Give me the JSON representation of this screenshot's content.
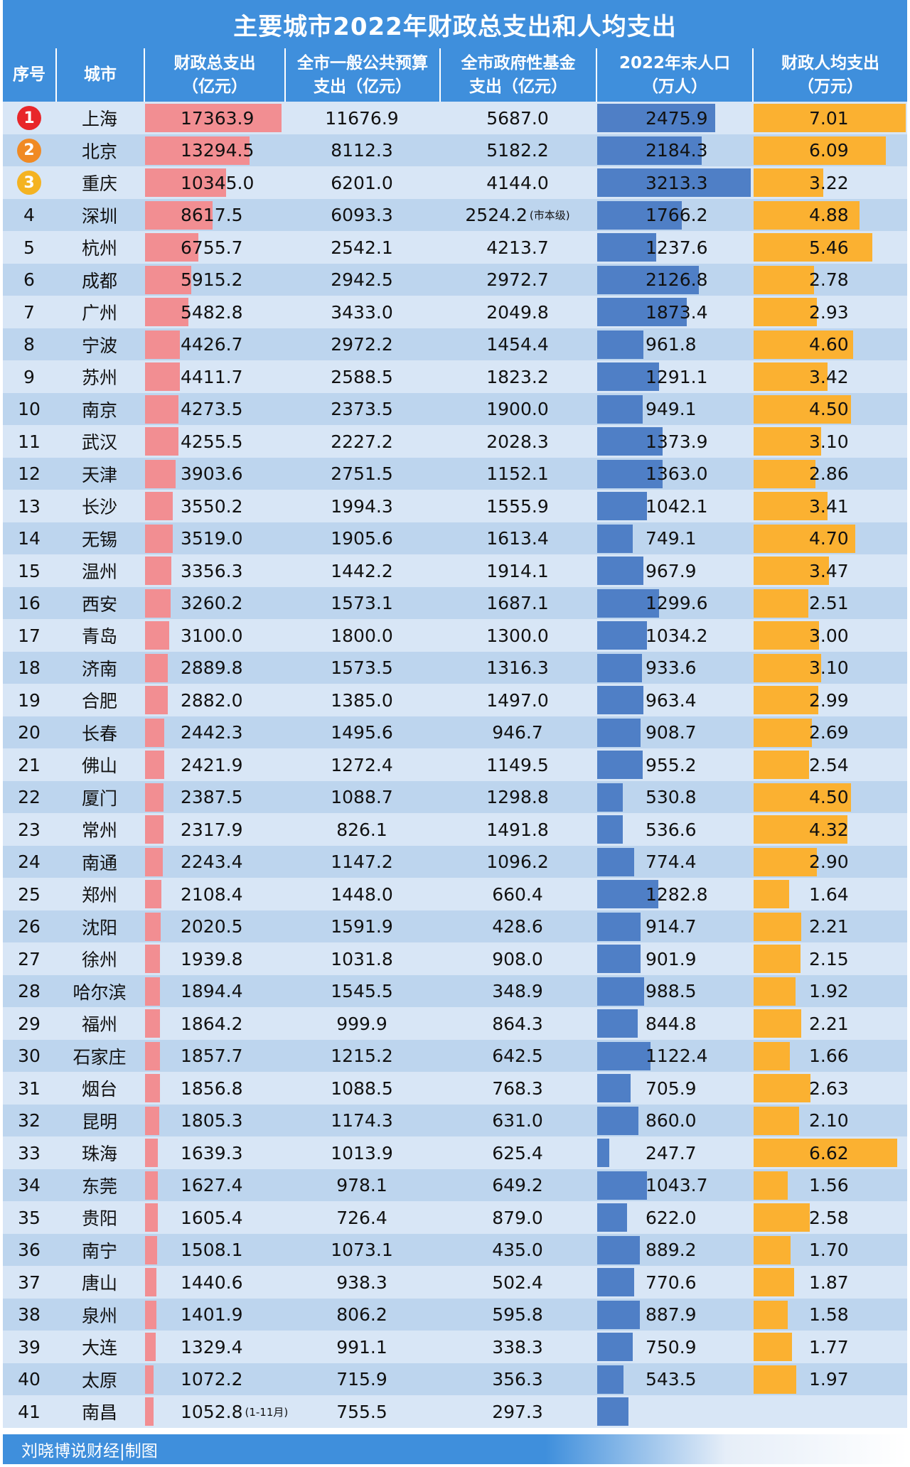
{
  "chart_data": {
    "type": "table",
    "title": "主要城市2022年财政总支出和人均支出",
    "headers": [
      [
        "序号"
      ],
      [
        "城市"
      ],
      [
        "财政总支出",
        "（亿元）"
      ],
      [
        "全市一般公共预算",
        "支出（亿元）"
      ],
      [
        "全市政府性基金",
        "支出（亿元）"
      ],
      [
        "2022年末人口",
        "（万人）"
      ],
      [
        "财政人均支出",
        "（万元）"
      ]
    ],
    "rank_colors": [
      "#e8262a",
      "#f08a24",
      "#f4b322"
    ],
    "bar_colors": {
      "total": "#f28e92",
      "population": "#4f7fc6",
      "per_capita": "#fbb131"
    },
    "rows": [
      {
        "rank": "1",
        "city": "上海",
        "total": "17363.9",
        "budget": "11676.9",
        "fund": "5687.0",
        "pop": "2475.9",
        "pc": "7.01"
      },
      {
        "rank": "2",
        "city": "北京",
        "total": "13294.5",
        "budget": "8112.3",
        "fund": "5182.2",
        "pop": "2184.3",
        "pc": "6.09"
      },
      {
        "rank": "3",
        "city": "重庆",
        "total": "10345.0",
        "budget": "6201.0",
        "fund": "4144.0",
        "pop": "3213.3",
        "pc": "3.22"
      },
      {
        "rank": "4",
        "city": "深圳",
        "total": "8617.5",
        "budget": "6093.3",
        "fund": "2524.2",
        "fund_note": "(市本级)",
        "pop": "1766.2",
        "pc": "4.88"
      },
      {
        "rank": "5",
        "city": "杭州",
        "total": "6755.7",
        "budget": "2542.1",
        "fund": "4213.7",
        "pop": "1237.6",
        "pc": "5.46"
      },
      {
        "rank": "6",
        "city": "成都",
        "total": "5915.2",
        "budget": "2942.5",
        "fund": "2972.7",
        "pop": "2126.8",
        "pc": "2.78"
      },
      {
        "rank": "7",
        "city": "广州",
        "total": "5482.8",
        "budget": "3433.0",
        "fund": "2049.8",
        "pop": "1873.4",
        "pc": "2.93"
      },
      {
        "rank": "8",
        "city": "宁波",
        "total": "4426.7",
        "budget": "2972.2",
        "fund": "1454.4",
        "pop": "961.8",
        "pc": "4.60"
      },
      {
        "rank": "9",
        "city": "苏州",
        "total": "4411.7",
        "budget": "2588.5",
        "fund": "1823.2",
        "pop": "1291.1",
        "pc": "3.42"
      },
      {
        "rank": "10",
        "city": "南京",
        "total": "4273.5",
        "budget": "2373.5",
        "fund": "1900.0",
        "pop": "949.1",
        "pc": "4.50"
      },
      {
        "rank": "11",
        "city": "武汉",
        "total": "4255.5",
        "budget": "2227.2",
        "fund": "2028.3",
        "pop": "1373.9",
        "pc": "3.10"
      },
      {
        "rank": "12",
        "city": "天津",
        "total": "3903.6",
        "budget": "2751.5",
        "fund": "1152.1",
        "pop": "1363.0",
        "pc": "2.86"
      },
      {
        "rank": "13",
        "city": "长沙",
        "total": "3550.2",
        "budget": "1994.3",
        "fund": "1555.9",
        "pop": "1042.1",
        "pc": "3.41"
      },
      {
        "rank": "14",
        "city": "无锡",
        "total": "3519.0",
        "budget": "1905.6",
        "fund": "1613.4",
        "pop": "749.1",
        "pc": "4.70"
      },
      {
        "rank": "15",
        "city": "温州",
        "total": "3356.3",
        "budget": "1442.2",
        "fund": "1914.1",
        "pop": "967.9",
        "pc": "3.47"
      },
      {
        "rank": "16",
        "city": "西安",
        "total": "3260.2",
        "budget": "1573.1",
        "fund": "1687.1",
        "pop": "1299.6",
        "pc": "2.51"
      },
      {
        "rank": "17",
        "city": "青岛",
        "total": "3100.0",
        "budget": "1800.0",
        "fund": "1300.0",
        "pop": "1034.2",
        "pc": "3.00"
      },
      {
        "rank": "18",
        "city": "济南",
        "total": "2889.8",
        "budget": "1573.5",
        "fund": "1316.3",
        "pop": "933.6",
        "pc": "3.10"
      },
      {
        "rank": "19",
        "city": "合肥",
        "total": "2882.0",
        "budget": "1385.0",
        "fund": "1497.0",
        "pop": "963.4",
        "pc": "2.99"
      },
      {
        "rank": "20",
        "city": "长春",
        "total": "2442.3",
        "budget": "1495.6",
        "fund": "946.7",
        "pop": "908.7",
        "pc": "2.69"
      },
      {
        "rank": "21",
        "city": "佛山",
        "total": "2421.9",
        "budget": "1272.4",
        "fund": "1149.5",
        "pop": "955.2",
        "pc": "2.54"
      },
      {
        "rank": "22",
        "city": "厦门",
        "total": "2387.5",
        "budget": "1088.7",
        "fund": "1298.8",
        "pop": "530.8",
        "pc": "4.50"
      },
      {
        "rank": "23",
        "city": "常州",
        "total": "2317.9",
        "budget": "826.1",
        "fund": "1491.8",
        "pop": "536.6",
        "pc": "4.32"
      },
      {
        "rank": "24",
        "city": "南通",
        "total": "2243.4",
        "budget": "1147.2",
        "fund": "1096.2",
        "pop": "774.4",
        "pc": "2.90"
      },
      {
        "rank": "25",
        "city": "郑州",
        "total": "2108.4",
        "budget": "1448.0",
        "fund": "660.4",
        "pop": "1282.8",
        "pc": "1.64"
      },
      {
        "rank": "26",
        "city": "沈阳",
        "total": "2020.5",
        "budget": "1591.9",
        "fund": "428.6",
        "pop": "914.7",
        "pc": "2.21"
      },
      {
        "rank": "27",
        "city": "徐州",
        "total": "1939.8",
        "budget": "1031.8",
        "fund": "908.0",
        "pop": "901.9",
        "pc": "2.15"
      },
      {
        "rank": "28",
        "city": "哈尔滨",
        "total": "1894.4",
        "budget": "1545.5",
        "fund": "348.9",
        "pop": "988.5",
        "pc": "1.92"
      },
      {
        "rank": "29",
        "city": "福州",
        "total": "1864.2",
        "budget": "999.9",
        "fund": "864.3",
        "pop": "844.8",
        "pc": "2.21"
      },
      {
        "rank": "30",
        "city": "石家庄",
        "total": "1857.7",
        "budget": "1215.2",
        "fund": "642.5",
        "pop": "1122.4",
        "pc": "1.66"
      },
      {
        "rank": "31",
        "city": "烟台",
        "total": "1856.8",
        "budget": "1088.5",
        "fund": "768.3",
        "pop": "705.9",
        "pc": "2.63"
      },
      {
        "rank": "32",
        "city": "昆明",
        "total": "1805.3",
        "budget": "1174.3",
        "fund": "631.0",
        "pop": "860.0",
        "pc": "2.10"
      },
      {
        "rank": "33",
        "city": "珠海",
        "total": "1639.3",
        "budget": "1013.9",
        "fund": "625.4",
        "pop": "247.7",
        "pc": "6.62"
      },
      {
        "rank": "34",
        "city": "东莞",
        "total": "1627.4",
        "budget": "978.1",
        "fund": "649.2",
        "pop": "1043.7",
        "pc": "1.56"
      },
      {
        "rank": "35",
        "city": "贵阳",
        "total": "1605.4",
        "budget": "726.4",
        "fund": "879.0",
        "pop": "622.0",
        "pc": "2.58"
      },
      {
        "rank": "36",
        "city": "南宁",
        "total": "1508.1",
        "budget": "1073.1",
        "fund": "435.0",
        "pop": "889.2",
        "pc": "1.70"
      },
      {
        "rank": "37",
        "city": "唐山",
        "total": "1440.6",
        "budget": "938.3",
        "fund": "502.4",
        "pop": "770.6",
        "pc": "1.87"
      },
      {
        "rank": "38",
        "city": "泉州",
        "total": "1401.9",
        "budget": "806.2",
        "fund": "595.8",
        "pop": "887.9",
        "pc": "1.58"
      },
      {
        "rank": "39",
        "city": "大连",
        "total": "1329.4",
        "budget": "991.1",
        "fund": "338.3",
        "pop": "750.9",
        "pc": "1.77"
      },
      {
        "rank": "40",
        "city": "太原",
        "total": "1072.2",
        "budget": "715.9",
        "fund": "356.3",
        "pop": "543.5",
        "pc": "1.97"
      },
      {
        "rank": "41",
        "city": "南昌",
        "total": "1052.8",
        "total_note": "(1-11月)",
        "budget": "755.5",
        "fund": "297.3",
        "pop": "",
        "pc": ""
      }
    ],
    "footer": "刘晓博说财经|制图"
  }
}
